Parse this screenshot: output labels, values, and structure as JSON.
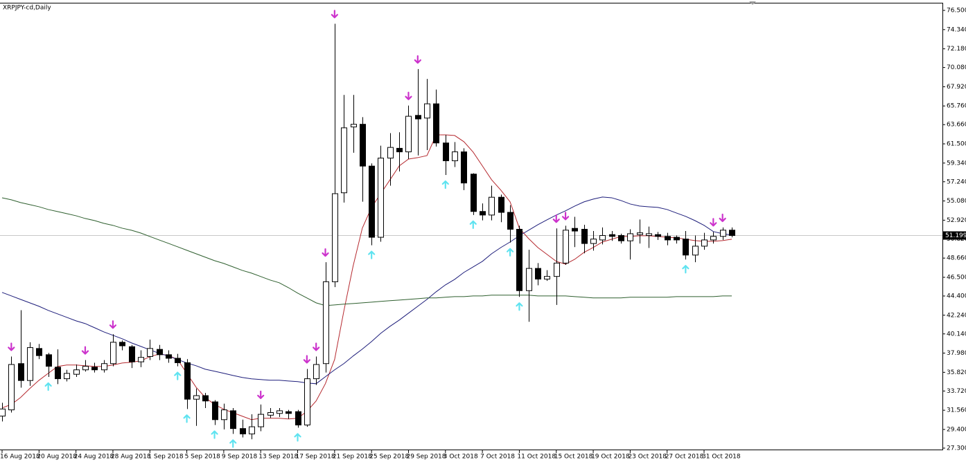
{
  "chart_data": {
    "type": "candlestick",
    "title": "XRPJPY-cd,Daily",
    "categories": [
      "16 Aug 2018",
      null,
      null,
      null,
      "20 Aug 2018",
      null,
      null,
      null,
      "24 Aug 2018",
      null,
      null,
      null,
      "28 Aug 2018",
      null,
      null,
      null,
      "1 Sep 2018",
      null,
      null,
      null,
      "5 Sep 2018",
      null,
      null,
      null,
      "9 Sep 2018",
      null,
      null,
      null,
      "13 Sep 2018",
      null,
      null,
      null,
      "17 Sep 2018",
      null,
      null,
      null,
      "21 Sep 2018",
      null,
      null,
      null,
      "25 Sep 2018",
      null,
      null,
      null,
      "29 Sep 2018",
      null,
      null,
      null,
      "3 Oct 2018",
      null,
      null,
      null,
      "7 Oct 2018",
      null,
      null,
      null,
      "11 Oct 2018",
      null,
      null,
      null,
      "15 Oct 2018",
      null,
      null,
      null,
      "19 Oct 2018",
      null,
      null,
      null,
      "23 Oct 2018",
      null,
      null,
      null,
      "27 Oct 2018",
      null,
      null,
      null,
      "31 Oct 2018",
      null,
      null,
      null
    ],
    "open": [
      30.9,
      31.6,
      36.8,
      34.9,
      38.5,
      37.8,
      36.4,
      35.1,
      35.6,
      36.1,
      36.4,
      36.1,
      36.8,
      39.2,
      38.7,
      37.0,
      37.6,
      38.4,
      37.8,
      37.4,
      36.9,
      32.8,
      33.2,
      32.5,
      30.5,
      31.5,
      29.5,
      28.9,
      29.7,
      31.0,
      31.2,
      31.4,
      31.4,
      29.9,
      35.1,
      36.8,
      46.0,
      56.0,
      63.4,
      63.7,
      59.0,
      51.0,
      59.9,
      61.0,
      60.6,
      64.7,
      64.4,
      66.0,
      61.6,
      59.6,
      60.6,
      58.1,
      53.9,
      53.5,
      55.5,
      53.8,
      51.9,
      45.0,
      47.5,
      46.3,
      46.6,
      48.1,
      52.0,
      51.9,
      50.3,
      50.7,
      51.3,
      51.2,
      50.6,
      51.3,
      51.2,
      51.3,
      51.1,
      51.0,
      50.8,
      49.0,
      50.0,
      50.7,
      51.1,
      51.8
    ],
    "high": [
      32.4,
      37.6,
      42.8,
      39.2,
      39.0,
      38.0,
      38.4,
      36.1,
      36.7,
      37.2,
      36.9,
      37.2,
      40.1,
      39.4,
      38.9,
      38.3,
      39.5,
      38.9,
      38.3,
      37.9,
      37.3,
      34.0,
      33.5,
      32.7,
      32.3,
      31.8,
      30.5,
      31.1,
      32.2,
      31.8,
      31.8,
      31.6,
      31.6,
      36.2,
      37.6,
      48.2,
      75.0,
      67.0,
      67.0,
      64.5,
      59.3,
      61.3,
      62.7,
      62.8,
      65.8,
      69.9,
      68.8,
      67.6,
      62.5,
      61.7,
      61.0,
      58.2,
      54.8,
      56.8,
      55.8,
      54.6,
      52.3,
      49.6,
      48.1,
      47.3,
      52.0,
      52.3,
      53.3,
      52.4,
      51.7,
      52.1,
      51.7,
      51.4,
      51.9,
      53.0,
      52.2,
      51.6,
      51.5,
      51.2,
      51.7,
      51.2,
      51.5,
      51.6,
      52.1,
      52.1
    ],
    "low": [
      30.3,
      31.3,
      34.1,
      34.3,
      37.3,
      35.3,
      34.5,
      34.8,
      35.3,
      35.9,
      35.8,
      35.8,
      36.5,
      38.3,
      36.3,
      36.4,
      37.2,
      37.2,
      36.9,
      36.5,
      31.7,
      29.8,
      31.8,
      29.9,
      29.4,
      28.9,
      28.5,
      28.3,
      29.2,
      30.7,
      30.8,
      30.6,
      29.6,
      29.7,
      34.4,
      35.8,
      45.4,
      54.9,
      60.5,
      55.0,
      50.1,
      50.5,
      56.8,
      58.4,
      59.8,
      60.2,
      60.8,
      61.2,
      58.0,
      58.9,
      56.3,
      53.5,
      52.9,
      52.9,
      52.7,
      50.4,
      44.3,
      41.5,
      45.6,
      46.1,
      43.4,
      47.9,
      49.9,
      49.2,
      49.5,
      50.2,
      50.6,
      50.3,
      48.5,
      50.3,
      49.8,
      50.7,
      50.1,
      50.3,
      48.5,
      48.2,
      49.6,
      50.3,
      50.7,
      51.0
    ],
    "close": [
      31.7,
      36.7,
      34.9,
      38.6,
      37.7,
      36.5,
      35.1,
      35.7,
      36.1,
      36.5,
      36.1,
      36.8,
      39.2,
      38.8,
      37.0,
      37.5,
      38.5,
      37.8,
      37.4,
      36.9,
      32.8,
      33.2,
      32.6,
      30.5,
      31.6,
      29.5,
      28.9,
      29.7,
      31.1,
      31.3,
      31.5,
      31.2,
      29.9,
      35.1,
      36.7,
      46.0,
      55.9,
      63.3,
      63.7,
      59.0,
      51.0,
      59.9,
      61.1,
      60.6,
      64.6,
      64.3,
      66.0,
      61.6,
      59.6,
      60.6,
      57.1,
      53.9,
      53.5,
      55.5,
      53.8,
      51.9,
      45.0,
      47.5,
      46.3,
      46.6,
      48.1,
      51.8,
      51.7,
      50.3,
      50.8,
      51.2,
      51.1,
      50.6,
      51.4,
      51.5,
      51.4,
      51.1,
      50.7,
      50.7,
      49.0,
      50.0,
      50.7,
      51.1,
      51.8,
      51.2
    ],
    "bull_color": "#ffffff",
    "bear_color": "#000000",
    "series": [
      {
        "color": "#b5282e",
        "values": [
          31.82,
          32.21,
          32.99,
          34.0,
          34.93,
          35.71,
          36.48,
          36.64,
          36.64,
          36.56,
          36.48,
          36.48,
          36.64,
          36.87,
          36.95,
          37.11,
          37.57,
          37.88,
          37.73,
          37.26,
          35.71,
          34.15,
          32.99,
          32.21,
          31.67,
          31.28,
          30.89,
          30.5,
          30.66,
          30.66,
          30.66,
          30.58,
          30.66,
          31.43,
          32.6,
          34.54,
          37.26,
          42.7,
          47.75,
          52.02,
          54.36,
          55.91,
          57.46,
          59.02,
          59.79,
          59.95,
          60.18,
          62.51,
          62.51,
          62.44,
          61.74,
          60.57,
          59.02,
          57.46,
          56.3,
          54.98,
          52.02,
          50.86,
          49.85,
          49.07,
          48.29,
          47.98,
          48.53,
          49.3,
          49.85,
          50.47,
          50.78,
          51.09,
          51.09,
          51.17,
          51.17,
          51.09,
          51.01,
          50.94,
          50.78,
          50.63,
          50.55,
          50.55,
          50.63,
          50.78
        ]
      },
      {
        "color": "#1c1c7a",
        "values": [
          44.8,
          44.41,
          44.02,
          43.63,
          43.24,
          42.78,
          42.39,
          42.0,
          41.61,
          41.3,
          40.84,
          40.37,
          39.98,
          39.59,
          39.13,
          38.74,
          38.35,
          37.96,
          37.65,
          37.26,
          36.87,
          36.56,
          36.17,
          35.94,
          35.71,
          35.47,
          35.24,
          35.09,
          35.01,
          34.93,
          34.93,
          34.85,
          34.78,
          34.62,
          34.54,
          35.32,
          36.1,
          36.8,
          37.65,
          38.43,
          39.28,
          40.21,
          40.99,
          41.69,
          42.47,
          43.24,
          44.02,
          44.88,
          45.65,
          46.27,
          47.05,
          47.67,
          48.29,
          49.15,
          49.85,
          50.47,
          51.17,
          51.79,
          52.41,
          52.96,
          53.5,
          53.97,
          54.51,
          54.98,
          55.29,
          55.52,
          55.44,
          55.13,
          54.74,
          54.51,
          54.43,
          54.36,
          54.12,
          53.73,
          53.35,
          52.88,
          52.34,
          51.64,
          51.4,
          51.25
        ]
      },
      {
        "color": "#2d5e2d",
        "values": [
          55.44,
          55.21,
          54.9,
          54.67,
          54.43,
          54.12,
          53.89,
          53.66,
          53.42,
          53.11,
          52.88,
          52.57,
          52.34,
          52.02,
          51.79,
          51.48,
          51.09,
          50.7,
          50.32,
          49.93,
          49.54,
          49.15,
          48.76,
          48.37,
          48.06,
          47.67,
          47.28,
          46.97,
          46.59,
          46.2,
          45.89,
          45.34,
          44.72,
          44.18,
          43.63,
          43.32,
          43.4,
          43.48,
          43.55,
          43.63,
          43.71,
          43.79,
          43.87,
          43.94,
          44.02,
          44.1,
          44.18,
          44.18,
          44.26,
          44.33,
          44.33,
          44.41,
          44.41,
          44.49,
          44.49,
          44.49,
          44.49,
          44.49,
          44.41,
          44.41,
          44.41,
          44.41,
          44.33,
          44.26,
          44.18,
          44.18,
          44.18,
          44.18,
          44.26,
          44.26,
          44.26,
          44.26,
          44.26,
          44.33,
          44.33,
          44.33,
          44.33,
          44.33,
          44.41,
          44.41
        ]
      }
    ],
    "fractals_up": {
      "color": "#cc33cc",
      "values": [
        null,
        37.6,
        null,
        null,
        null,
        null,
        null,
        null,
        null,
        37.2,
        null,
        null,
        40.1,
        null,
        null,
        null,
        null,
        null,
        null,
        null,
        null,
        null,
        null,
        null,
        null,
        null,
        null,
        null,
        32.2,
        null,
        null,
        null,
        null,
        36.2,
        37.6,
        48.2,
        75.0,
        null,
        null,
        null,
        null,
        null,
        null,
        null,
        65.8,
        69.9,
        null,
        null,
        null,
        null,
        null,
        null,
        null,
        null,
        null,
        null,
        null,
        null,
        null,
        null,
        52.0,
        52.3,
        null,
        null,
        null,
        null,
        null,
        null,
        null,
        null,
        null,
        null,
        null,
        null,
        null,
        null,
        null,
        51.6,
        52.1,
        null
      ]
    },
    "fractals_down": {
      "color": "#5fe3f0",
      "values": [
        null,
        null,
        null,
        null,
        null,
        35.3,
        null,
        null,
        null,
        null,
        null,
        null,
        null,
        null,
        null,
        null,
        null,
        null,
        null,
        36.5,
        31.7,
        null,
        null,
        29.9,
        null,
        28.9,
        null,
        null,
        null,
        null,
        null,
        null,
        29.6,
        null,
        null,
        null,
        null,
        null,
        null,
        null,
        50.1,
        null,
        null,
        null,
        null,
        null,
        null,
        null,
        58.0,
        null,
        null,
        53.5,
        null,
        null,
        null,
        50.4,
        44.3,
        null,
        null,
        null,
        null,
        null,
        null,
        null,
        null,
        null,
        null,
        null,
        null,
        null,
        null,
        null,
        null,
        null,
        48.5,
        null,
        null,
        null,
        null,
        null
      ]
    },
    "last_price": 51.199,
    "ylim": [
      27.14,
      77.28
    ],
    "yticks": [
      {
        "value": 76.5,
        "label": "76.500"
      },
      {
        "value": 74.34,
        "label": "74.340"
      },
      {
        "value": 72.18,
        "label": "72.180"
      },
      {
        "value": 70.08,
        "label": "70.080"
      },
      {
        "value": 67.92,
        "label": "67.920"
      },
      {
        "value": 65.76,
        "label": "65.760"
      },
      {
        "value": 63.66,
        "label": "63.660"
      },
      {
        "value": 61.5,
        "label": "61.500"
      },
      {
        "value": 59.34,
        "label": "59.340"
      },
      {
        "value": 57.24,
        "label": "57.240"
      },
      {
        "value": 55.08,
        "label": "55.080"
      },
      {
        "value": 52.92,
        "label": "52.920"
      },
      {
        "value": 50.82,
        "label": "50.820"
      },
      {
        "value": 48.66,
        "label": "48.660"
      },
      {
        "value": 46.5,
        "label": "46.500"
      },
      {
        "value": 44.4,
        "label": "44.400"
      },
      {
        "value": 42.24,
        "label": "42.240"
      },
      {
        "value": 40.14,
        "label": "40.140"
      },
      {
        "value": 37.98,
        "label": "37.980"
      },
      {
        "value": 35.82,
        "label": "35.820"
      },
      {
        "value": 33.72,
        "label": "33.720"
      },
      {
        "value": 31.56,
        "label": "31.560"
      },
      {
        "value": 29.4,
        "label": "29.400"
      },
      {
        "value": 27.3,
        "label": "27.300"
      }
    ],
    "grid": false
  }
}
